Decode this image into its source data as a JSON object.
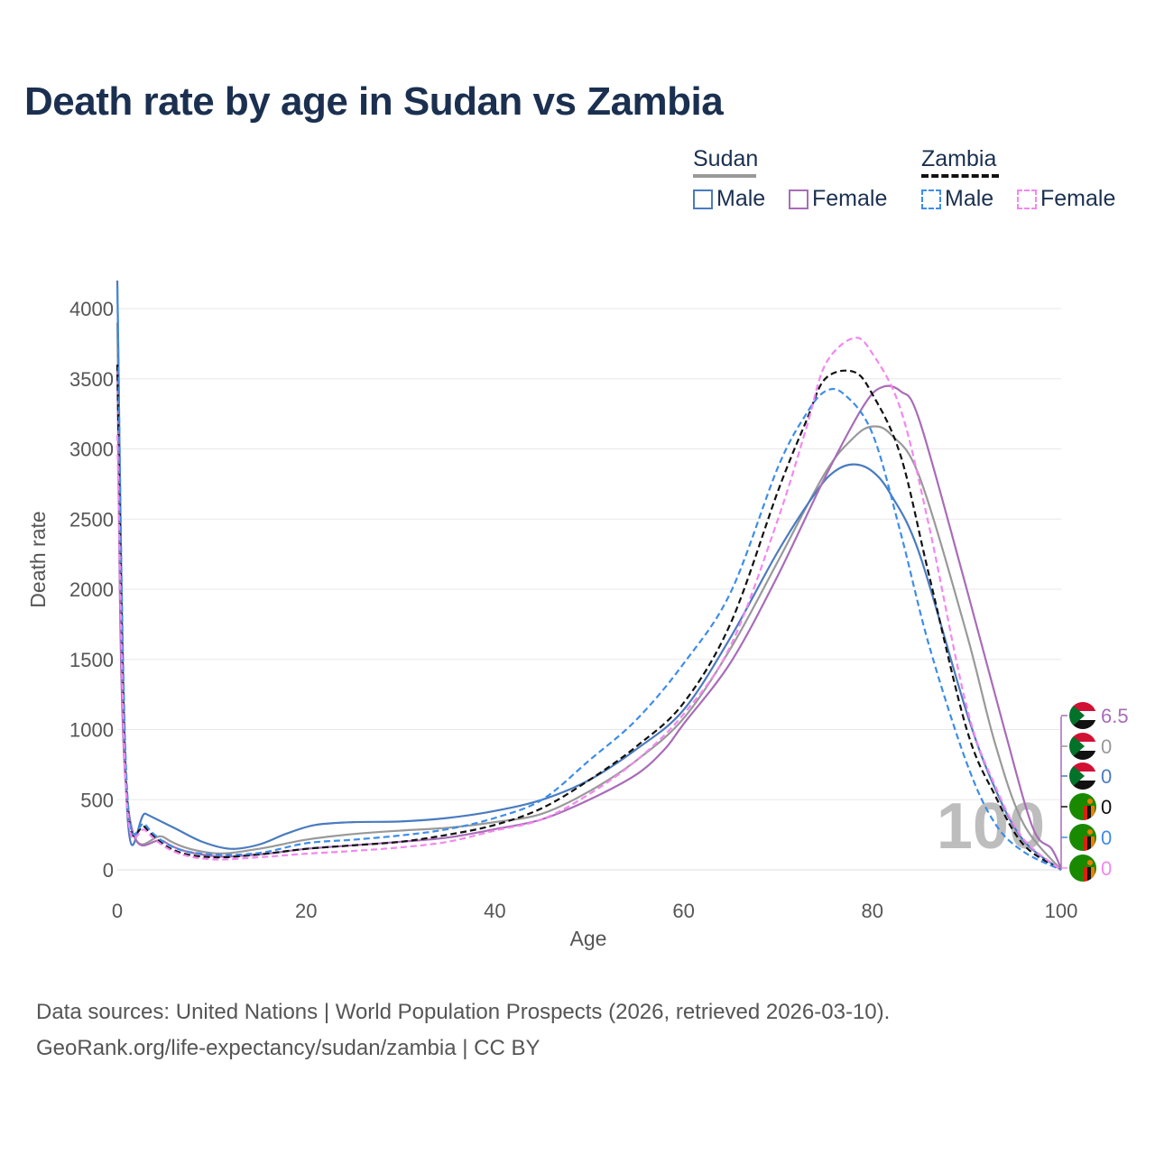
{
  "title": "Death rate by age in Sudan vs Zambia",
  "legend": {
    "groups": [
      {
        "name": "Sudan",
        "line_style": "solid",
        "items": [
          {
            "label": "Male",
            "color": "#4a7bbf"
          },
          {
            "label": "Female",
            "color": "#a86cb8"
          }
        ]
      },
      {
        "name": "Zambia",
        "line_style": "dashed",
        "items": [
          {
            "label": "Male",
            "color": "#3d8de8"
          },
          {
            "label": "Female",
            "color": "#f387f0"
          }
        ]
      }
    ]
  },
  "footer": {
    "line1": "Data sources: United Nations | World Population Prospects (2026, retrieved 2026-03-10).",
    "line2": "GeoRank.org/life-expectancy/sudan/zambia | CC BY"
  },
  "chart_data": {
    "type": "line",
    "title": "Death rate by age in Sudan vs Zambia",
    "xlabel": "Age",
    "ylabel": "Death rate",
    "xlim": [
      0,
      100
    ],
    "ylim": [
      0,
      4200
    ],
    "xticks": [
      0,
      20,
      40,
      60,
      80,
      100
    ],
    "yticks": [
      0,
      500,
      1000,
      1500,
      2000,
      2500,
      3000,
      3500,
      4000
    ],
    "grid": true,
    "year_watermark": "100",
    "series": [
      {
        "name": "Sudan Total",
        "country": "Sudan",
        "sex": "Total",
        "color": "#999999",
        "dash": "solid",
        "end_value": "0",
        "points": [
          [
            0,
            3900
          ],
          [
            1,
            540
          ],
          [
            5,
            230
          ],
          [
            10,
            120
          ],
          [
            15,
            150
          ],
          [
            20,
            215
          ],
          [
            25,
            255
          ],
          [
            30,
            280
          ],
          [
            35,
            300
          ],
          [
            40,
            340
          ],
          [
            45,
            400
          ],
          [
            50,
            560
          ],
          [
            55,
            780
          ],
          [
            60,
            1080
          ],
          [
            65,
            1580
          ],
          [
            70,
            2200
          ],
          [
            75,
            2830
          ],
          [
            78,
            3080
          ],
          [
            80,
            3160
          ],
          [
            82,
            3100
          ],
          [
            85,
            2800
          ],
          [
            90,
            1680
          ],
          [
            93,
            900
          ],
          [
            96,
            330
          ],
          [
            100,
            0
          ]
        ]
      },
      {
        "name": "Sudan Male",
        "country": "Sudan",
        "sex": "Male",
        "color": "#4a7bbf",
        "dash": "solid",
        "end_value": "0",
        "points": [
          [
            0,
            4200
          ],
          [
            1,
            470
          ],
          [
            3,
            400
          ],
          [
            6,
            300
          ],
          [
            9,
            200
          ],
          [
            12,
            150
          ],
          [
            15,
            180
          ],
          [
            18,
            260
          ],
          [
            21,
            320
          ],
          [
            25,
            340
          ],
          [
            30,
            345
          ],
          [
            35,
            370
          ],
          [
            40,
            420
          ],
          [
            45,
            500
          ],
          [
            50,
            640
          ],
          [
            55,
            860
          ],
          [
            60,
            1140
          ],
          [
            65,
            1660
          ],
          [
            70,
            2270
          ],
          [
            74,
            2690
          ],
          [
            76,
            2840
          ],
          [
            78,
            2890
          ],
          [
            80,
            2840
          ],
          [
            82,
            2670
          ],
          [
            85,
            2250
          ],
          [
            90,
            1120
          ],
          [
            93,
            580
          ],
          [
            96,
            210
          ],
          [
            100,
            0
          ]
        ]
      },
      {
        "name": "Sudan Female",
        "country": "Sudan",
        "sex": "Female",
        "color": "#a86cb8",
        "dash": "solid",
        "end_value": "6.5",
        "points": [
          [
            0,
            3600
          ],
          [
            1,
            520
          ],
          [
            5,
            200
          ],
          [
            10,
            100
          ],
          [
            15,
            110
          ],
          [
            20,
            150
          ],
          [
            25,
            175
          ],
          [
            30,
            200
          ],
          [
            35,
            230
          ],
          [
            40,
            290
          ],
          [
            45,
            360
          ],
          [
            50,
            500
          ],
          [
            55,
            680
          ],
          [
            58,
            860
          ],
          [
            60,
            1040
          ],
          [
            65,
            1480
          ],
          [
            70,
            2100
          ],
          [
            75,
            2800
          ],
          [
            79,
            3300
          ],
          [
            81,
            3440
          ],
          [
            83,
            3410
          ],
          [
            85,
            3200
          ],
          [
            90,
            2000
          ],
          [
            94,
            1000
          ],
          [
            97,
            300
          ],
          [
            99,
            150
          ],
          [
            100,
            6.5
          ]
        ]
      },
      {
        "name": "Zambia Total",
        "country": "Zambia",
        "sex": "Total",
        "color": "#111111",
        "dash": "dashed",
        "end_value": "0",
        "points": [
          [
            0,
            3600
          ],
          [
            1,
            550
          ],
          [
            3,
            300
          ],
          [
            6,
            140
          ],
          [
            10,
            90
          ],
          [
            15,
            110
          ],
          [
            20,
            150
          ],
          [
            25,
            175
          ],
          [
            30,
            200
          ],
          [
            35,
            250
          ],
          [
            40,
            320
          ],
          [
            45,
            440
          ],
          [
            50,
            640
          ],
          [
            55,
            880
          ],
          [
            60,
            1190
          ],
          [
            65,
            1760
          ],
          [
            70,
            2700
          ],
          [
            73,
            3200
          ],
          [
            75,
            3500
          ],
          [
            78,
            3550
          ],
          [
            80,
            3390
          ],
          [
            83,
            2950
          ],
          [
            86,
            2100
          ],
          [
            90,
            1000
          ],
          [
            93,
            530
          ],
          [
            96,
            180
          ],
          [
            100,
            0
          ]
        ]
      },
      {
        "name": "Zambia Male",
        "country": "Zambia",
        "sex": "Male",
        "color": "#3d8de8",
        "dash": "dashed",
        "end_value": "0",
        "points": [
          [
            0,
            4150
          ],
          [
            1,
            610
          ],
          [
            3,
            320
          ],
          [
            6,
            160
          ],
          [
            10,
            110
          ],
          [
            15,
            120
          ],
          [
            20,
            190
          ],
          [
            25,
            215
          ],
          [
            30,
            245
          ],
          [
            35,
            290
          ],
          [
            40,
            370
          ],
          [
            45,
            500
          ],
          [
            50,
            780
          ],
          [
            55,
            1070
          ],
          [
            60,
            1470
          ],
          [
            65,
            1980
          ],
          [
            70,
            2870
          ],
          [
            73,
            3250
          ],
          [
            75,
            3410
          ],
          [
            77,
            3390
          ],
          [
            80,
            3110
          ],
          [
            83,
            2400
          ],
          [
            86,
            1600
          ],
          [
            90,
            760
          ],
          [
            93,
            330
          ],
          [
            96,
            130
          ],
          [
            100,
            0
          ]
        ]
      },
      {
        "name": "Zambia Female",
        "country": "Zambia",
        "sex": "Female",
        "color": "#f387f0",
        "dash": "dashed",
        "end_value": "0",
        "points": [
          [
            0,
            3100
          ],
          [
            1,
            480
          ],
          [
            3,
            280
          ],
          [
            6,
            130
          ],
          [
            10,
            75
          ],
          [
            15,
            90
          ],
          [
            20,
            115
          ],
          [
            25,
            135
          ],
          [
            30,
            160
          ],
          [
            35,
            200
          ],
          [
            40,
            280
          ],
          [
            45,
            360
          ],
          [
            50,
            540
          ],
          [
            55,
            780
          ],
          [
            60,
            1110
          ],
          [
            65,
            1600
          ],
          [
            70,
            2500
          ],
          [
            73,
            3150
          ],
          [
            75,
            3600
          ],
          [
            78,
            3790
          ],
          [
            80,
            3680
          ],
          [
            83,
            3280
          ],
          [
            86,
            2450
          ],
          [
            90,
            1160
          ],
          [
            93,
            600
          ],
          [
            96,
            220
          ],
          [
            100,
            0
          ]
        ]
      }
    ]
  }
}
